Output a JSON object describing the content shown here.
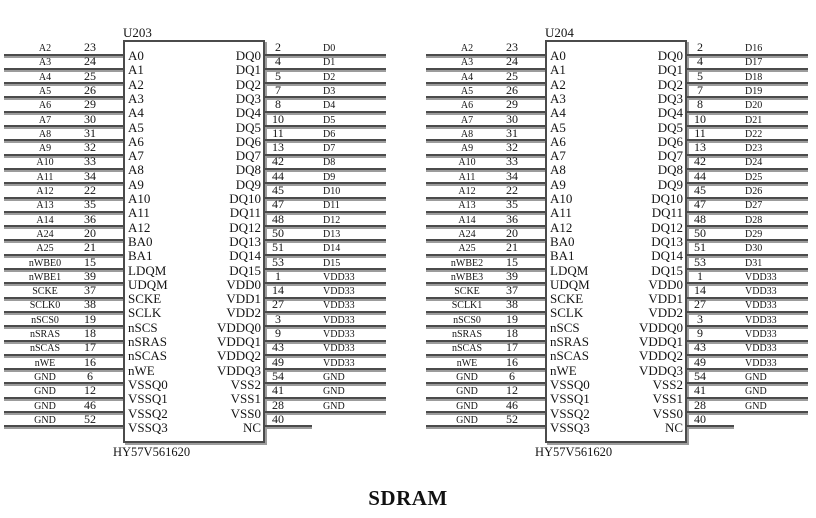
{
  "title": "SDRAM",
  "colors": {
    "ink": "#141414",
    "wire": "#4b4b4b",
    "wire_shadow": "#9c9c9c",
    "background": "#ffffff"
  },
  "chips": [
    {
      "refdes": "U203",
      "part": "HY57V561620",
      "left_pins": [
        {
          "net": "A2",
          "pin": "23",
          "name": "A0"
        },
        {
          "net": "A3",
          "pin": "24",
          "name": "A1"
        },
        {
          "net": "A4",
          "pin": "25",
          "name": "A2"
        },
        {
          "net": "A5",
          "pin": "26",
          "name": "A3"
        },
        {
          "net": "A6",
          "pin": "29",
          "name": "A4"
        },
        {
          "net": "A7",
          "pin": "30",
          "name": "A5"
        },
        {
          "net": "A8",
          "pin": "31",
          "name": "A6"
        },
        {
          "net": "A9",
          "pin": "32",
          "name": "A7"
        },
        {
          "net": "A10",
          "pin": "33",
          "name": "A8"
        },
        {
          "net": "A11",
          "pin": "34",
          "name": "A9"
        },
        {
          "net": "A12",
          "pin": "22",
          "name": "A10"
        },
        {
          "net": "A13",
          "pin": "35",
          "name": "A11"
        },
        {
          "net": "A14",
          "pin": "36",
          "name": "A12"
        },
        {
          "net": "A24",
          "pin": "20",
          "name": "BA0"
        },
        {
          "net": "A25",
          "pin": "21",
          "name": "BA1"
        },
        {
          "net": "nWBE0",
          "pin": "15",
          "name": "LDQM"
        },
        {
          "net": "nWBE1",
          "pin": "39",
          "name": "UDQM"
        },
        {
          "net": "SCKE",
          "pin": "37",
          "name": "SCKE"
        },
        {
          "net": "SCLK0",
          "pin": "38",
          "name": "SCLK"
        },
        {
          "net": "nSCS0",
          "pin": "19",
          "name": "nSCS"
        },
        {
          "net": "nSRAS",
          "pin": "18",
          "name": "nSRAS"
        },
        {
          "net": "nSCAS",
          "pin": "17",
          "name": "nSCAS"
        },
        {
          "net": "nWE",
          "pin": "16",
          "name": "nWE"
        },
        {
          "net": "GND",
          "pin": "6",
          "name": "VSSQ0"
        },
        {
          "net": "GND",
          "pin": "12",
          "name": "VSSQ1"
        },
        {
          "net": "GND",
          "pin": "46",
          "name": "VSSQ2"
        },
        {
          "net": "GND",
          "pin": "52",
          "name": "VSSQ3"
        }
      ],
      "right_pins": [
        {
          "pin": "2",
          "net": "D0",
          "name": "DQ0"
        },
        {
          "pin": "4",
          "net": "D1",
          "name": "DQ1"
        },
        {
          "pin": "5",
          "net": "D2",
          "name": "DQ2"
        },
        {
          "pin": "7",
          "net": "D3",
          "name": "DQ3"
        },
        {
          "pin": "8",
          "net": "D4",
          "name": "DQ4"
        },
        {
          "pin": "10",
          "net": "D5",
          "name": "DQ5"
        },
        {
          "pin": "11",
          "net": "D6",
          "name": "DQ6"
        },
        {
          "pin": "13",
          "net": "D7",
          "name": "DQ7"
        },
        {
          "pin": "42",
          "net": "D8",
          "name": "DQ8"
        },
        {
          "pin": "44",
          "net": "D9",
          "name": "DQ9"
        },
        {
          "pin": "45",
          "net": "D10",
          "name": "DQ10"
        },
        {
          "pin": "47",
          "net": "D11",
          "name": "DQ11"
        },
        {
          "pin": "48",
          "net": "D12",
          "name": "DQ12"
        },
        {
          "pin": "50",
          "net": "D13",
          "name": "DQ13"
        },
        {
          "pin": "51",
          "net": "D14",
          "name": "DQ14"
        },
        {
          "pin": "53",
          "net": "D15",
          "name": "DQ15"
        },
        {
          "pin": "1",
          "net": "VDD33",
          "name": "VDD0"
        },
        {
          "pin": "14",
          "net": "VDD33",
          "name": "VDD1"
        },
        {
          "pin": "27",
          "net": "VDD33",
          "name": "VDD2"
        },
        {
          "pin": "3",
          "net": "VDD33",
          "name": "VDDQ0"
        },
        {
          "pin": "9",
          "net": "VDD33",
          "name": "VDDQ1"
        },
        {
          "pin": "43",
          "net": "VDD33",
          "name": "VDDQ2"
        },
        {
          "pin": "49",
          "net": "VDD33",
          "name": "VDDQ3"
        },
        {
          "pin": "54",
          "net": "GND",
          "name": "VSS2"
        },
        {
          "pin": "41",
          "net": "GND",
          "name": "VSS1"
        },
        {
          "pin": "28",
          "net": "GND",
          "name": "VSS0"
        },
        {
          "pin": "40",
          "net": "",
          "name": "NC"
        }
      ]
    },
    {
      "refdes": "U204",
      "part": "HY57V561620",
      "left_pins": [
        {
          "net": "A2",
          "pin": "23",
          "name": "A0"
        },
        {
          "net": "A3",
          "pin": "24",
          "name": "A1"
        },
        {
          "net": "A4",
          "pin": "25",
          "name": "A2"
        },
        {
          "net": "A5",
          "pin": "26",
          "name": "A3"
        },
        {
          "net": "A6",
          "pin": "29",
          "name": "A4"
        },
        {
          "net": "A7",
          "pin": "30",
          "name": "A5"
        },
        {
          "net": "A8",
          "pin": "31",
          "name": "A6"
        },
        {
          "net": "A9",
          "pin": "32",
          "name": "A7"
        },
        {
          "net": "A10",
          "pin": "33",
          "name": "A8"
        },
        {
          "net": "A11",
          "pin": "34",
          "name": "A9"
        },
        {
          "net": "A12",
          "pin": "22",
          "name": "A10"
        },
        {
          "net": "A13",
          "pin": "35",
          "name": "A11"
        },
        {
          "net": "A14",
          "pin": "36",
          "name": "A12"
        },
        {
          "net": "A24",
          "pin": "20",
          "name": "BA0"
        },
        {
          "net": "A25",
          "pin": "21",
          "name": "BA1"
        },
        {
          "net": "nWBE2",
          "pin": "15",
          "name": "LDQM"
        },
        {
          "net": "nWBE3",
          "pin": "39",
          "name": "UDQM"
        },
        {
          "net": "SCKE",
          "pin": "37",
          "name": "SCKE"
        },
        {
          "net": "SCLK1",
          "pin": "38",
          "name": "SCLK"
        },
        {
          "net": "nSCS0",
          "pin": "19",
          "name": "nSCS"
        },
        {
          "net": "nSRAS",
          "pin": "18",
          "name": "nSRAS"
        },
        {
          "net": "nSCAS",
          "pin": "17",
          "name": "nSCAS"
        },
        {
          "net": "nWE",
          "pin": "16",
          "name": "nWE"
        },
        {
          "net": "GND",
          "pin": "6",
          "name": "VSSQ0"
        },
        {
          "net": "GND",
          "pin": "12",
          "name": "VSSQ1"
        },
        {
          "net": "GND",
          "pin": "46",
          "name": "VSSQ2"
        },
        {
          "net": "GND",
          "pin": "52",
          "name": "VSSQ3"
        }
      ],
      "right_pins": [
        {
          "pin": "2",
          "net": "D16",
          "name": "DQ0"
        },
        {
          "pin": "4",
          "net": "D17",
          "name": "DQ1"
        },
        {
          "pin": "5",
          "net": "D18",
          "name": "DQ2"
        },
        {
          "pin": "7",
          "net": "D19",
          "name": "DQ3"
        },
        {
          "pin": "8",
          "net": "D20",
          "name": "DQ4"
        },
        {
          "pin": "10",
          "net": "D21",
          "name": "DQ5"
        },
        {
          "pin": "11",
          "net": "D22",
          "name": "DQ6"
        },
        {
          "pin": "13",
          "net": "D23",
          "name": "DQ7"
        },
        {
          "pin": "42",
          "net": "D24",
          "name": "DQ8"
        },
        {
          "pin": "44",
          "net": "D25",
          "name": "DQ9"
        },
        {
          "pin": "45",
          "net": "D26",
          "name": "DQ10"
        },
        {
          "pin": "47",
          "net": "D27",
          "name": "DQ11"
        },
        {
          "pin": "48",
          "net": "D28",
          "name": "DQ12"
        },
        {
          "pin": "50",
          "net": "D29",
          "name": "DQ13"
        },
        {
          "pin": "51",
          "net": "D30",
          "name": "DQ14"
        },
        {
          "pin": "53",
          "net": "D31",
          "name": "DQ15"
        },
        {
          "pin": "1",
          "net": "VDD33",
          "name": "VDD0"
        },
        {
          "pin": "14",
          "net": "VDD33",
          "name": "VDD1"
        },
        {
          "pin": "27",
          "net": "VDD33",
          "name": "VDD2"
        },
        {
          "pin": "3",
          "net": "VDD33",
          "name": "VDDQ0"
        },
        {
          "pin": "9",
          "net": "VDD33",
          "name": "VDDQ1"
        },
        {
          "pin": "43",
          "net": "VDD33",
          "name": "VDDQ2"
        },
        {
          "pin": "49",
          "net": "VDD33",
          "name": "VDDQ3"
        },
        {
          "pin": "54",
          "net": "GND",
          "name": "VSS2"
        },
        {
          "pin": "41",
          "net": "GND",
          "name": "VSS1"
        },
        {
          "pin": "28",
          "net": "GND",
          "name": "VSS0"
        },
        {
          "pin": "40",
          "net": "",
          "name": "NC"
        }
      ]
    }
  ]
}
